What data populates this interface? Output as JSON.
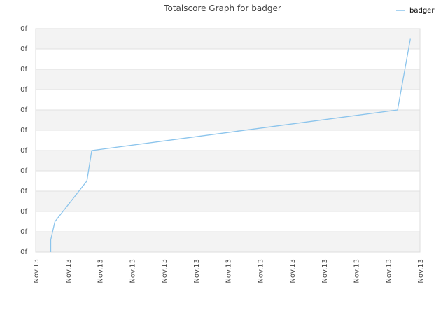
{
  "chart_data": {
    "type": "line",
    "title": "Totalscore Graph for badger",
    "xlabel": "",
    "ylabel": "",
    "x_tick_labels": [
      "Nov.13",
      "Nov.13",
      "Nov.13",
      "Nov.13",
      "Nov.13",
      "Nov.13",
      "Nov.13",
      "Nov.13",
      "Nov.13",
      "Nov.13",
      "Nov.13",
      "Nov.13",
      "Nov.13"
    ],
    "y_tick_labels": [
      "0f",
      "0f",
      "0f",
      "0f",
      "0f",
      "0f",
      "0f",
      "0f",
      "0f",
      "0f",
      "0f",
      "0f"
    ],
    "xlim": [
      0,
      12
    ],
    "ylim": [
      0,
      11
    ],
    "legend": "top-right",
    "grid": "horizontal bands",
    "series": [
      {
        "name": "badger",
        "color": "#8bc4ec",
        "points": [
          [
            0.47,
            0.0
          ],
          [
            0.47,
            0.6
          ],
          [
            0.6,
            1.5
          ],
          [
            1.6,
            3.5
          ],
          [
            1.75,
            5.0
          ],
          [
            11.3,
            7.0
          ],
          [
            11.7,
            10.5
          ]
        ]
      }
    ]
  }
}
